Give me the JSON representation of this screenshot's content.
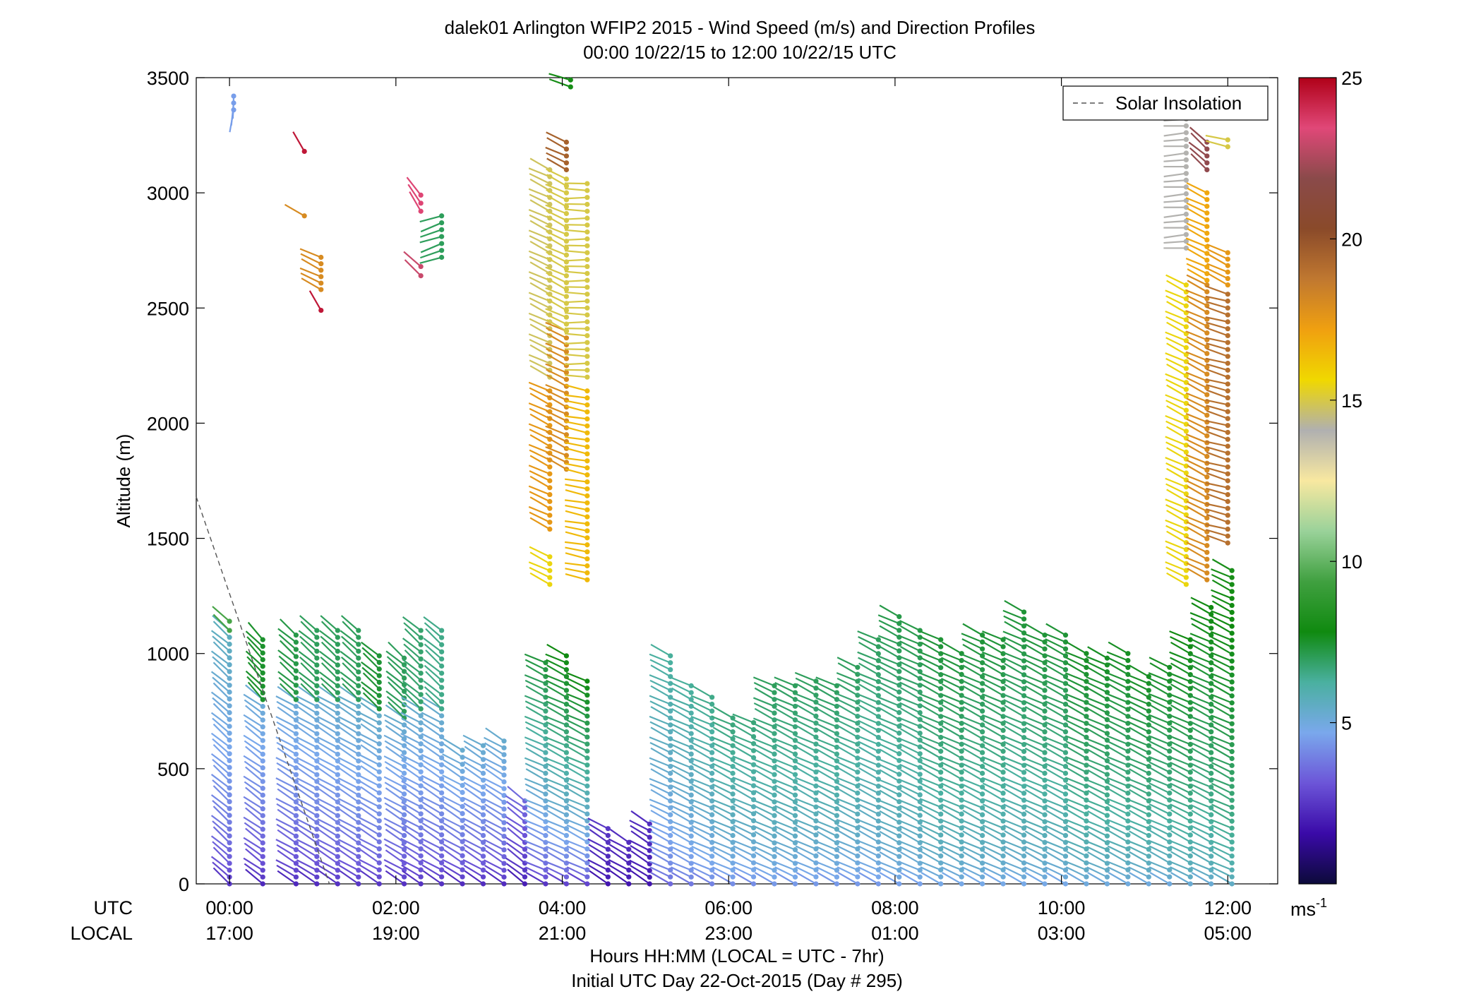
{
  "chart_data": {
    "type": "wind_barb_profile",
    "title": "dalek01 Arlington WFIP2 2015 - Wind Speed (m/s) and Direction Profiles",
    "subtitle": "00:00 10/22/15 to 12:00 10/22/15  UTC",
    "ylabel": "Altitude (m)",
    "xlabel": "Hours HH:MM  (LOCAL = UTC - 7hr)",
    "xlabel2": "Initial UTC Day 22-Oct-2015 (Day # 295)",
    "ylim": [
      0,
      3500
    ],
    "xlim_hours_utc": [
      -0.4,
      12.6
    ],
    "yticks": [
      "0",
      "500",
      "1000",
      "1500",
      "2000",
      "2500",
      "3000",
      "3500"
    ],
    "xtick_hours": [
      0,
      2,
      4,
      6,
      8,
      10,
      12
    ],
    "utc_label": "UTC",
    "local_label": "LOCAL",
    "utc_ticks": [
      "00:00",
      "02:00",
      "04:00",
      "06:00",
      "08:00",
      "10:00",
      "12:00"
    ],
    "local_ticks": [
      "17:00",
      "19:00",
      "21:00",
      "23:00",
      "01:00",
      "03:00",
      "05:00"
    ],
    "legend": {
      "entries": [
        "Solar Insolation"
      ],
      "placement": "top-right",
      "style": "dashed gray line"
    },
    "solar_insolation_line": [
      {
        "hour": -0.4,
        "alt": 1680
      },
      {
        "hour": 1.2,
        "alt": 0
      }
    ],
    "colorbar": {
      "min": 0,
      "max": 25,
      "ticks": [
        "5",
        "10",
        "15",
        "20",
        "25"
      ],
      "unit_base": "ms",
      "unit_exp": "-1",
      "colors": [
        "#0c0a3a",
        "#3a0aa8",
        "#6c55d8",
        "#7aa8ec",
        "#4ab0a0",
        "#108a10",
        "#40a040",
        "#9ad29a",
        "#f8e8a0",
        "#b0b0b0",
        "#f0d800",
        "#f0a010",
        "#c07830",
        "#8a4a2a",
        "#8a4a4a",
        "#e04878",
        "#b00018"
      ]
    },
    "profiles": [
      {
        "hour": 0.0,
        "segments": [
          [
            0,
            1100,
            45,
            2.5,
            0.5,
            3.2
          ],
          [
            1100,
            1140,
            45,
            9.5,
            0,
            0
          ]
        ]
      },
      {
        "hour": 0.4,
        "segments": [
          [
            0,
            800,
            50,
            2.2,
            0.6,
            3.0
          ],
          [
            800,
            1060,
            40,
            7.5,
            0,
            0
          ]
        ]
      },
      {
        "hour": 0.8,
        "segments": [
          [
            0,
            800,
            55,
            2.2,
            0.7,
            3.0
          ],
          [
            800,
            1080,
            45,
            7.2,
            0,
            0
          ]
        ]
      },
      {
        "hour": 1.05,
        "segments": [
          [
            0,
            800,
            55,
            2.3,
            0.7,
            3.0
          ],
          [
            800,
            1100,
            45,
            7.0,
            0,
            0
          ]
        ]
      },
      {
        "hour": 1.3,
        "segments": [
          [
            0,
            800,
            55,
            2.4,
            0.8,
            3.0
          ],
          [
            800,
            1100,
            45,
            7.0,
            0,
            0
          ]
        ]
      },
      {
        "hour": 1.55,
        "segments": [
          [
            0,
            800,
            55,
            2.5,
            0.8,
            3.0
          ],
          [
            800,
            1100,
            45,
            7.0,
            0,
            0
          ]
        ]
      },
      {
        "hour": 1.8,
        "segments": [
          [
            0,
            760,
            55,
            2.5,
            0.8,
            3.0
          ],
          [
            760,
            990,
            45,
            7.4,
            0,
            0
          ]
        ]
      },
      {
        "hour": 2.1,
        "segments": [
          [
            0,
            720,
            55,
            2.4,
            0.8,
            3.0
          ],
          [
            720,
            980,
            45,
            7.0,
            0,
            0
          ]
        ]
      },
      {
        "hour": 2.3,
        "segments": [
          [
            0,
            760,
            55,
            2.4,
            0.8,
            3.0
          ],
          [
            760,
            1100,
            45,
            6.8,
            0,
            0
          ]
        ]
      },
      {
        "hour": 2.55,
        "segments": [
          [
            0,
            760,
            55,
            2.4,
            0.8,
            3.0
          ],
          [
            760,
            1100,
            45,
            6.5,
            0,
            0
          ]
        ]
      },
      {
        "hour": 2.8,
        "segments": [
          [
            0,
            580,
            55,
            2.3,
            0.9,
            3.0
          ]
        ]
      },
      {
        "hour": 3.05,
        "segments": [
          [
            0,
            600,
            55,
            2.3,
            0.9,
            3.0
          ]
        ]
      },
      {
        "hour": 3.3,
        "segments": [
          [
            0,
            620,
            55,
            2.3,
            0.9,
            3.0
          ]
        ]
      },
      {
        "hour": 3.55,
        "segments": [
          [
            0,
            360,
            50,
            2.0,
            0.9,
            1.5
          ]
        ]
      },
      {
        "hour": 3.8,
        "segments": [
          [
            0,
            960,
            60,
            2.5,
            0.8,
            4.8
          ]
        ]
      },
      {
        "hour": 4.05,
        "segments": [
          [
            0,
            990,
            60,
            2.8,
            0.8,
            5.0
          ]
        ]
      },
      {
        "hour": 4.3,
        "segments": [
          [
            0,
            880,
            60,
            2.8,
            0.8,
            5.0
          ]
        ]
      },
      {
        "hour": 4.55,
        "segments": [
          [
            0,
            240,
            55,
            1.8,
            0.9,
            0.7
          ]
        ]
      },
      {
        "hour": 4.8,
        "segments": [
          [
            0,
            180,
            55,
            1.8,
            0.9,
            0.5
          ]
        ]
      },
      {
        "hour": 5.05,
        "segments": [
          [
            0,
            260,
            55,
            1.8,
            0.9,
            0.5
          ]
        ]
      },
      {
        "hour": 5.3,
        "segments": [
          [
            0,
            990,
            60,
            3.5,
            0.5,
            2.8
          ]
        ]
      },
      {
        "hour": 5.55,
        "segments": [
          [
            0,
            860,
            60,
            3.8,
            0.5,
            2.5
          ]
        ]
      },
      {
        "hour": 5.8,
        "segments": [
          [
            0,
            810,
            60,
            4.0,
            0.5,
            2.5
          ]
        ]
      },
      {
        "hour": 6.05,
        "segments": [
          [
            0,
            720,
            60,
            4.2,
            0.5,
            2.5
          ]
        ]
      },
      {
        "hour": 6.3,
        "segments": [
          [
            0,
            700,
            60,
            4.2,
            0.5,
            2.5
          ]
        ]
      },
      {
        "hour": 6.55,
        "segments": [
          [
            0,
            860,
            60,
            4.4,
            0.4,
            2.6
          ]
        ]
      },
      {
        "hour": 6.8,
        "segments": [
          [
            0,
            860,
            60,
            4.4,
            0.4,
            2.6
          ]
        ]
      },
      {
        "hour": 7.05,
        "segments": [
          [
            0,
            880,
            60,
            4.4,
            0.4,
            2.6
          ]
        ]
      },
      {
        "hour": 7.3,
        "segments": [
          [
            0,
            860,
            60,
            4.4,
            0.4,
            2.6
          ]
        ]
      },
      {
        "hour": 7.55,
        "segments": [
          [
            0,
            940,
            60,
            4.4,
            0.4,
            2.6
          ]
        ]
      },
      {
        "hour": 7.8,
        "segments": [
          [
            0,
            1060,
            60,
            4.4,
            0.4,
            2.6
          ]
        ]
      },
      {
        "hour": 8.05,
        "segments": [
          [
            0,
            1160,
            60,
            4.6,
            0.4,
            2.6
          ]
        ]
      },
      {
        "hour": 8.3,
        "segments": [
          [
            0,
            1100,
            60,
            4.6,
            0.4,
            2.6
          ]
        ]
      },
      {
        "hour": 8.55,
        "segments": [
          [
            0,
            1060,
            60,
            4.8,
            0.4,
            2.6
          ]
        ]
      },
      {
        "hour": 8.8,
        "segments": [
          [
            0,
            1000,
            60,
            4.8,
            0.4,
            2.6
          ]
        ]
      },
      {
        "hour": 9.05,
        "segments": [
          [
            0,
            1080,
            60,
            4.8,
            0.4,
            2.6
          ]
        ]
      },
      {
        "hour": 9.3,
        "segments": [
          [
            0,
            1060,
            60,
            4.8,
            0.4,
            2.6
          ]
        ]
      },
      {
        "hour": 9.55,
        "segments": [
          [
            0,
            1180,
            60,
            4.8,
            0.4,
            2.6
          ]
        ]
      },
      {
        "hour": 9.8,
        "segments": [
          [
            0,
            1080,
            60,
            4.8,
            0.4,
            2.6
          ]
        ]
      },
      {
        "hour": 10.05,
        "segments": [
          [
            0,
            1080,
            60,
            4.8,
            0.4,
            2.6
          ]
        ]
      },
      {
        "hour": 10.3,
        "segments": [
          [
            0,
            1000,
            60,
            5.0,
            0.4,
            2.6
          ]
        ]
      },
      {
        "hour": 10.55,
        "segments": [
          [
            0,
            980,
            60,
            5.0,
            0.4,
            2.6
          ]
        ]
      },
      {
        "hour": 10.8,
        "segments": [
          [
            0,
            1000,
            60,
            5.0,
            0.4,
            2.6
          ]
        ]
      },
      {
        "hour": 11.05,
        "segments": [
          [
            0,
            900,
            60,
            5.0,
            0.4,
            2.6
          ]
        ]
      },
      {
        "hour": 11.3,
        "segments": [
          [
            0,
            940,
            60,
            5.0,
            0.4,
            2.6
          ]
        ]
      },
      {
        "hour": 11.55,
        "segments": [
          [
            0,
            1060,
            60,
            5.2,
            0.4,
            2.6
          ]
        ]
      },
      {
        "hour": 11.8,
        "segments": [
          [
            0,
            1200,
            60,
            5.2,
            0.4,
            2.6
          ]
        ]
      },
      {
        "hour": 12.05,
        "segments": [
          [
            0,
            1360,
            60,
            5.5,
            0.4,
            2.6
          ]
        ]
      },
      {
        "hour": 3.85,
        "segments": [
          [
            1300,
            1420,
            60,
            15.5,
            0,
            0
          ],
          [
            1540,
            2140,
            60,
            17.5,
            0,
            0
          ],
          [
            2200,
            3100,
            60,
            14.8,
            0,
            0
          ]
        ]
      },
      {
        "hour": 4.05,
        "segments": [
          [
            1800,
            2400,
            60,
            18.0,
            0,
            0
          ],
          [
            2400,
            3060,
            60,
            15.0,
            0,
            0
          ],
          [
            3100,
            3220,
            60,
            19.5,
            0,
            0
          ]
        ]
      },
      {
        "hour": 4.3,
        "segments": [
          [
            1320,
            2140,
            75,
            16.5,
            0,
            0
          ],
          [
            2200,
            3040,
            85,
            15.0,
            0,
            0
          ]
        ]
      },
      {
        "hour": 4.1,
        "segments": [
          [
            3460,
            3490,
            70,
            8.0,
            0,
            0
          ]
        ]
      },
      {
        "hour": 11.5,
        "segments": [
          [
            1300,
            2600,
            60,
            15.5,
            0,
            0
          ],
          [
            2760,
            3320,
            90,
            14.0,
            0,
            0
          ]
        ]
      },
      {
        "hour": 11.75,
        "segments": [
          [
            1320,
            2600,
            60,
            18.0,
            0,
            0
          ],
          [
            2620,
            3000,
            60,
            17.0,
            0,
            0
          ],
          [
            3100,
            3220,
            45,
            22.0,
            0,
            0
          ]
        ]
      },
      {
        "hour": 12.0,
        "segments": [
          [
            1480,
            2560,
            70,
            19.0,
            0,
            0
          ],
          [
            2600,
            2740,
            60,
            17.5,
            0,
            0
          ],
          [
            3200,
            3230,
            75,
            15.0,
            0,
            0
          ]
        ]
      },
      {
        "hour": 0.05,
        "segments": [
          [
            3360,
            3420,
            170,
            4.5,
            0,
            0
          ]
        ]
      },
      {
        "hour": 0.9,
        "segments": [
          [
            3180,
            3180,
            30,
            24.5,
            0,
            0
          ],
          [
            2900,
            2900,
            60,
            18.0,
            0,
            0
          ]
        ]
      },
      {
        "hour": 1.1,
        "segments": [
          [
            2580,
            2720,
            60,
            18.0,
            0,
            0
          ],
          [
            2490,
            2490,
            30,
            24.5,
            0,
            0
          ]
        ]
      },
      {
        "hour": 2.3,
        "segments": [
          [
            2640,
            2680,
            45,
            23.0,
            0,
            0
          ],
          [
            2920,
            2990,
            30,
            23.5,
            0,
            0
          ]
        ]
      },
      {
        "hour": 2.55,
        "segments": [
          [
            2720,
            2900,
            105,
            7.0,
            0,
            0
          ]
        ]
      }
    ]
  }
}
